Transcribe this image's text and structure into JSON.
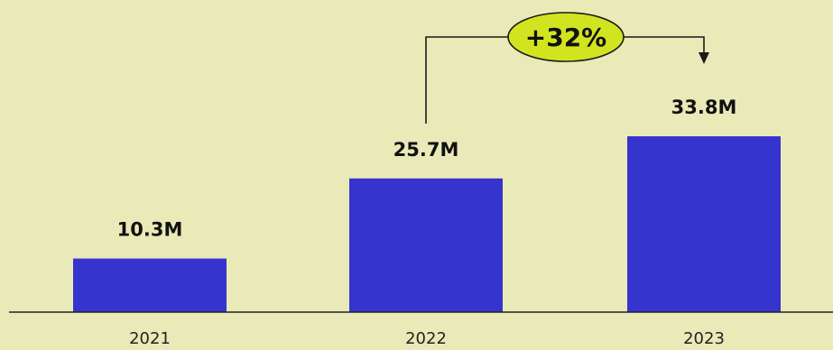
{
  "chart_data": {
    "type": "bar",
    "categories": [
      "2021",
      "2022",
      "2023"
    ],
    "values": [
      10.3,
      25.7,
      33.8
    ],
    "value_labels": [
      "10.3M",
      "25.7M",
      "33.8M"
    ],
    "title": "",
    "xlabel": "",
    "ylabel": "",
    "ylim": [
      0,
      60
    ],
    "grid": false,
    "legend": "none",
    "annotation": {
      "label": "+32%",
      "from_category": "2022",
      "to_category": "2023"
    },
    "colors": {
      "background": "#eaeab8",
      "bar": "#3634cf",
      "badge_fill": "#d1e41f",
      "axis": "#222222",
      "connector": "#1a1a1a"
    }
  }
}
